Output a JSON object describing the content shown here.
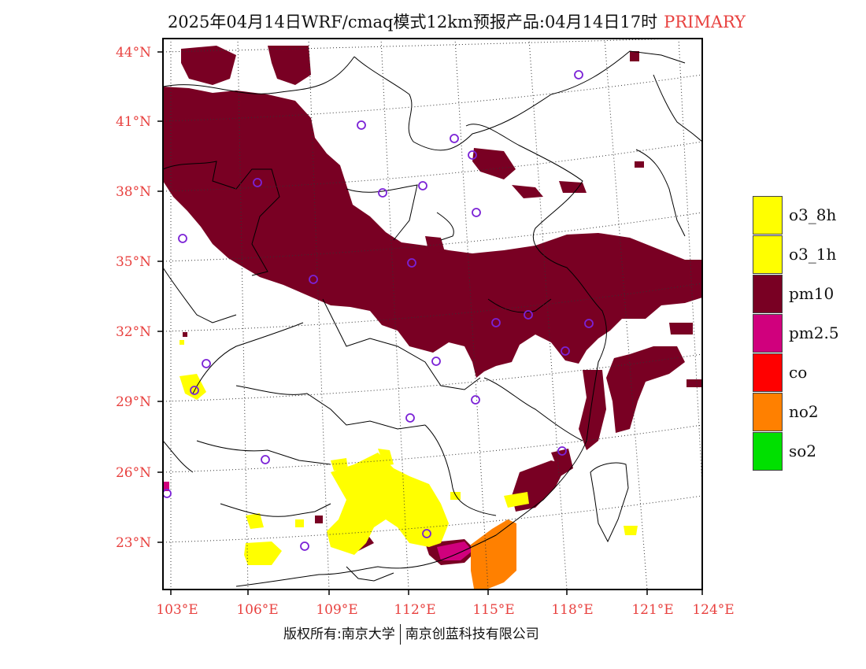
{
  "title": {
    "text": "2025年04月14日WRF/cmaq模式12km预报产品:04月14日17时",
    "tag": "PRIMARY"
  },
  "map": {
    "lat_labels": [
      "44°N",
      "41°N",
      "38°N",
      "35°N",
      "32°N",
      "29°N",
      "26°N",
      "23°N"
    ],
    "lon_labels": [
      "103°E",
      "106°E",
      "109°E",
      "112°E",
      "115°E",
      "118°E",
      "121°E",
      "124°E"
    ],
    "label_color": "#e8413f",
    "pollutant_colors": {
      "pm10": "#790023",
      "o3": "#ffff00",
      "no2": "#ff8000",
      "pm25": "#d0007d"
    },
    "station_marker": "purple-circle"
  },
  "legend": {
    "items": [
      {
        "label": "o3_8h",
        "color": "#ffff00"
      },
      {
        "label": "o3_1h",
        "color": "#ffff00"
      },
      {
        "label": "pm10",
        "color": "#790023"
      },
      {
        "label": "pm2.5",
        "color": "#d0007d"
      },
      {
        "label": "co",
        "color": "#ff0000"
      },
      {
        "label": "no2",
        "color": "#ff8000"
      },
      {
        "label": "so2",
        "color": "#00e000"
      }
    ]
  },
  "footer": {
    "left": "版权所有:南京大学",
    "right": "南京创蓝科技有限公司"
  }
}
